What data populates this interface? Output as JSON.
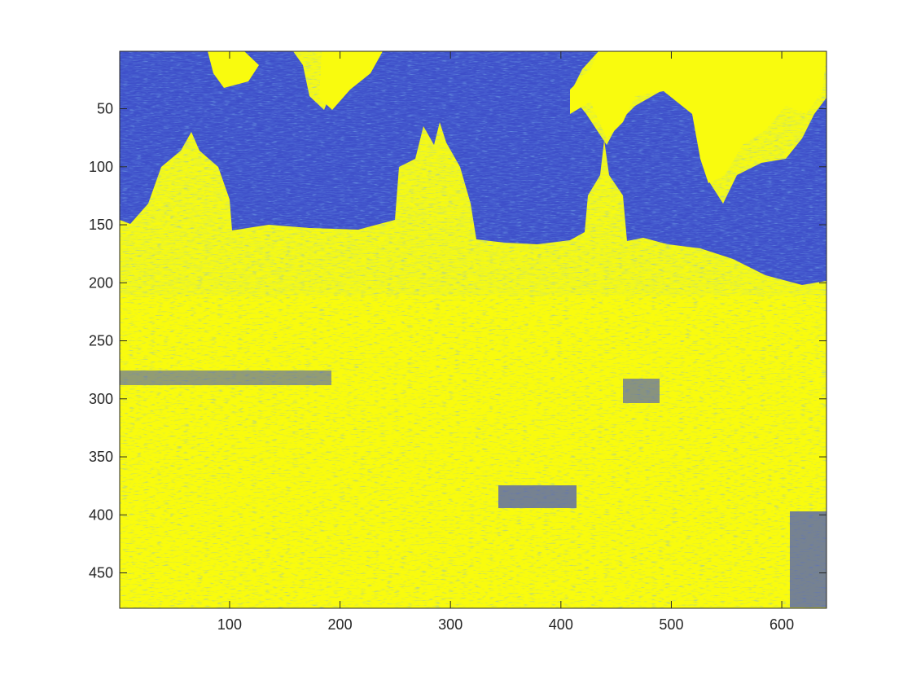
{
  "chart_data": {
    "type": "heatmap",
    "title": "",
    "xlabel": "",
    "ylabel": "",
    "xlim": [
      0.5,
      640.5
    ],
    "ylim": [
      0.5,
      480.5
    ],
    "y_direction": "reversed",
    "colormap": "parula",
    "dominant_colors": {
      "low": "#3E4FC9",
      "high": "#F9FB0E",
      "mid": "#27B5D8"
    },
    "x_ticks": [
      100,
      200,
      300,
      400,
      500,
      600
    ],
    "y_ticks": [
      50,
      100,
      150,
      200,
      250,
      300,
      350,
      400,
      450
    ],
    "x_tick_labels": [
      "100",
      "200",
      "300",
      "400",
      "500",
      "600"
    ],
    "y_tick_labels": [
      "50",
      "100",
      "150",
      "200",
      "250",
      "300",
      "350",
      "400",
      "450"
    ],
    "grid": false,
    "legend": "none",
    "content": "binarized edge-magnitude image of a city skyline with domes and spires (dark blue sky region in top portion, yellow textured buildings and foreground)"
  }
}
